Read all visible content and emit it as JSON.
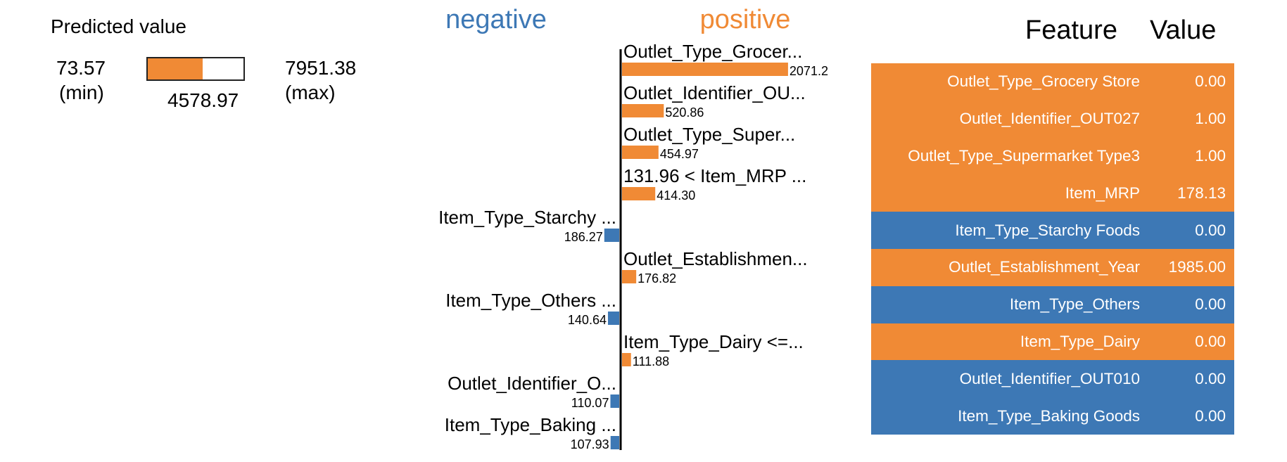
{
  "predicted_value": {
    "title": "Predicted value",
    "min_value": "73.57",
    "min_label": "(min)",
    "max_value": "7951.38",
    "max_label": "(max)",
    "value": "4578.97",
    "fraction": 0.5717,
    "fill_color": "#f08a35"
  },
  "colors": {
    "negative": "#3d78b5",
    "positive": "#f08a35",
    "axis": "#000000"
  },
  "chart_data": {
    "type": "bar",
    "orientation": "horizontal",
    "headers": {
      "negative": "negative",
      "positive": "positive"
    },
    "bars": [
      {
        "label": "Outlet_Type_Grocer...",
        "value": 2071.2,
        "value_label": "2071.2",
        "side": "positive"
      },
      {
        "label": "Outlet_Identifier_OU...",
        "value": 520.86,
        "value_label": "520.86",
        "side": "positive"
      },
      {
        "label": "Outlet_Type_Super...",
        "value": 454.97,
        "value_label": "454.97",
        "side": "positive"
      },
      {
        "label": "131.96 < Item_MRP ...",
        "value": 414.3,
        "value_label": "414.30",
        "side": "positive"
      },
      {
        "label": "Item_Type_Starchy ...",
        "value": 186.27,
        "value_label": "186.27",
        "side": "negative"
      },
      {
        "label": "Outlet_Establishmen...",
        "value": 176.82,
        "value_label": "176.82",
        "side": "positive"
      },
      {
        "label": "Item_Type_Others ...",
        "value": 140.64,
        "value_label": "140.64",
        "side": "negative"
      },
      {
        "label": "Item_Type_Dairy <=...",
        "value": 111.88,
        "value_label": "111.88",
        "side": "positive"
      },
      {
        "label": "Outlet_Identifier_O...",
        "value": 110.07,
        "value_label": "110.07",
        "side": "negative"
      },
      {
        "label": "Item_Type_Baking ...",
        "value": 107.93,
        "value_label": "107.93",
        "side": "negative"
      }
    ]
  },
  "table": {
    "headers": {
      "feature": "Feature",
      "value": "Value"
    },
    "rows": [
      {
        "feature": "Outlet_Type_Grocery Store",
        "value": "0.00",
        "side": "positive"
      },
      {
        "feature": "Outlet_Identifier_OUT027",
        "value": "1.00",
        "side": "positive"
      },
      {
        "feature": "Outlet_Type_Supermarket Type3",
        "value": "1.00",
        "side": "positive"
      },
      {
        "feature": "Item_MRP",
        "value": "178.13",
        "side": "positive"
      },
      {
        "feature": "Item_Type_Starchy Foods",
        "value": "0.00",
        "side": "negative"
      },
      {
        "feature": "Outlet_Establishment_Year",
        "value": "1985.00",
        "side": "positive"
      },
      {
        "feature": "Item_Type_Others",
        "value": "0.00",
        "side": "negative"
      },
      {
        "feature": "Item_Type_Dairy",
        "value": "0.00",
        "side": "positive"
      },
      {
        "feature": "Outlet_Identifier_OUT010",
        "value": "0.00",
        "side": "negative"
      },
      {
        "feature": "Item_Type_Baking Goods",
        "value": "0.00",
        "side": "negative"
      }
    ]
  }
}
